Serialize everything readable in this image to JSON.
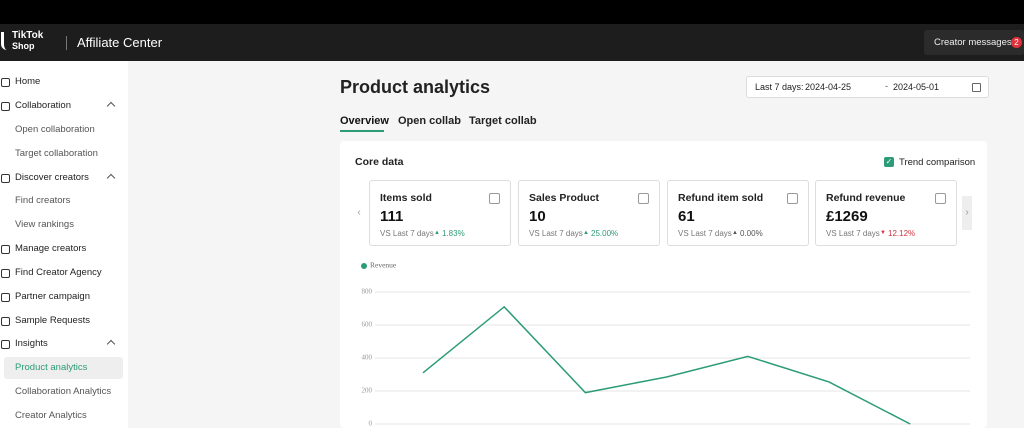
{
  "header": {
    "logo_top": "TikTok",
    "logo_bottom": "Shop",
    "title": "Affiliate Center",
    "messages": "Creator messages",
    "message_count": 2
  },
  "sidebar": {
    "items": [
      "Home",
      "Collaboration",
      "Open collaboration",
      "Target collaboration",
      "Discover creators",
      "Find creators",
      "View rankings",
      "Manage creators",
      "Find Creator Agency",
      "Partner campaign",
      "Sample Requests",
      "Insights",
      "Product analytics",
      "Collaboration Analytics",
      "Creator Analytics"
    ]
  },
  "page": {
    "title": "Product analytics",
    "date_label": "Last 7 days:",
    "start_date": "2024-04-25",
    "end_date": "2024-05-01",
    "tabs": [
      "Overview",
      "Open collab",
      "Target collab"
    ]
  },
  "core_data": {
    "title": "Core data",
    "trend": "Trend comparison",
    "cards": [
      {
        "label": "Items sold",
        "value": "111",
        "compare": "VS Last 7 days",
        "change": "1.83%"
      },
      {
        "label": "Sales Product",
        "value": "10",
        "compare": "VS Last 7 days",
        "change": "25.00%"
      },
      {
        "label": "Refund item sold",
        "value": "61",
        "compare": "VS Last 7 days",
        "change": "0.00%"
      },
      {
        "label": "Refund revenue",
        "value": "£1269",
        "compare": "VS Last 7 days",
        "change": "12.12%"
      }
    ]
  },
  "chart_data": {
    "type": "line",
    "series": [
      {
        "name": "Revenue",
        "color": "#2b9b78",
        "values": [
          310,
          710,
          190,
          285,
          410,
          255,
          0
        ]
      }
    ],
    "ylim": [
      0,
      800
    ],
    "yticks": [
      0,
      200,
      400,
      600,
      800
    ],
    "grid": true
  }
}
